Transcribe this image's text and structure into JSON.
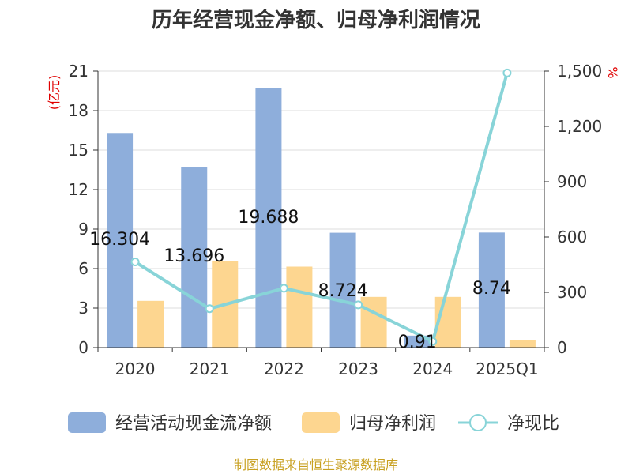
{
  "chart_data": {
    "type": "bar",
    "title": "历年经营现金净额、归母净利润情况",
    "categories": [
      "2020",
      "2021",
      "2022",
      "2023",
      "2024",
      "2025Q1"
    ],
    "series": [
      {
        "name": "经营活动现金流净额",
        "kind": "bar",
        "axis": "left",
        "color": "#8eaedb",
        "values": [
          16.304,
          13.696,
          19.688,
          8.724,
          0.91,
          8.74
        ],
        "labels": [
          "16.304",
          "13.696",
          "19.688",
          "8.724",
          "0.91",
          "8.74"
        ]
      },
      {
        "name": "归母净利润",
        "kind": "bar",
        "axis": "left",
        "color": "#fdd690",
        "values": [
          3.55,
          6.55,
          6.15,
          3.85,
          3.85,
          0.6
        ]
      },
      {
        "name": "净现比",
        "kind": "line",
        "axis": "right",
        "color": "#88d4d8",
        "values": [
          465,
          211,
          322,
          232,
          33,
          1490
        ]
      }
    ],
    "left_axis": {
      "unit": "(亿元)",
      "ylim": [
        0,
        21
      ],
      "ticks": [
        "0",
        "3",
        "6",
        "9",
        "12",
        "15",
        "18",
        "21"
      ]
    },
    "right_axis": {
      "unit": "%",
      "ylim": [
        0,
        1500
      ],
      "ticks": [
        "0",
        "300",
        "600",
        "900",
        "1,200",
        "1,500"
      ]
    },
    "source": "制图数据来自恒生聚源数据库"
  }
}
